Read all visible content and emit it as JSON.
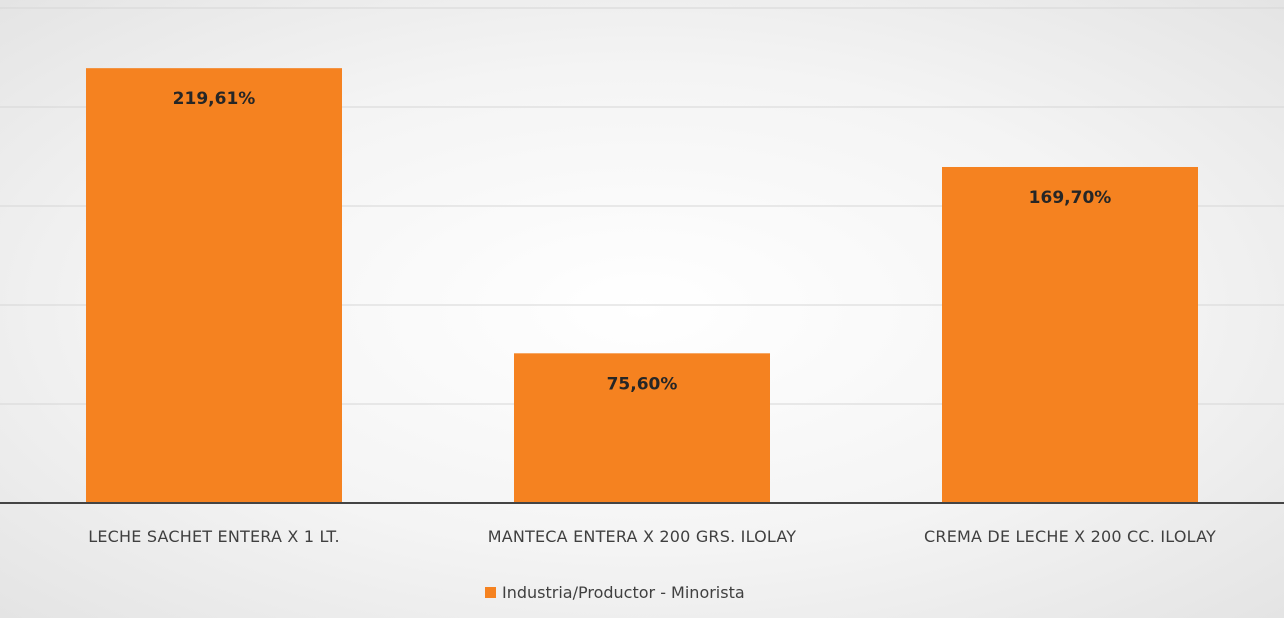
{
  "chart_data": {
    "type": "bar",
    "categories": [
      "LECHE SACHET ENTERA X 1 LT.",
      "MANTECA ENTERA X 200 GRS. ILOLAY",
      "CREMA DE LECHE X 200 CC. ILOLAY"
    ],
    "series": [
      {
        "name": "Industria/Productor - Minorista",
        "values": [
          219.61,
          75.6,
          169.7
        ],
        "labels": [
          "219,61%",
          "75,60%",
          "169,70%"
        ],
        "color": "#f58220"
      }
    ],
    "ylim": [
      0,
      250
    ],
    "grid": true,
    "legend_position": "bottom"
  }
}
